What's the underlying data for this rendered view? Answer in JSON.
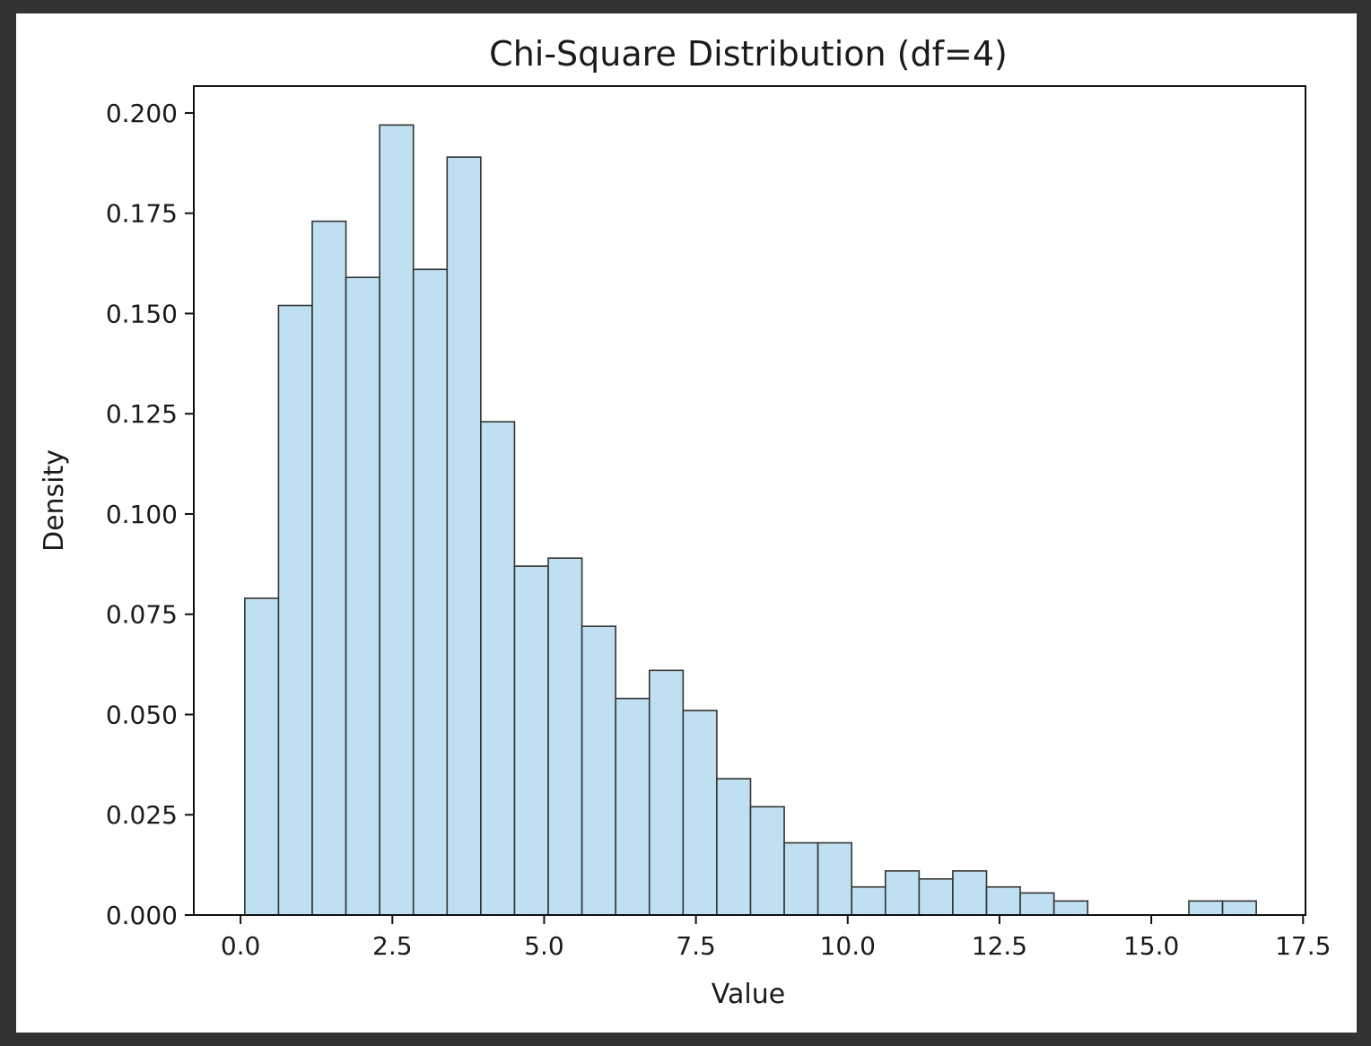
{
  "chart_data": {
    "type": "bar",
    "subtype": "histogram",
    "title": "Chi-Square Distribution (df=4)",
    "xlabel": "Value",
    "ylabel": "Density",
    "xlim": [
      -0.77,
      17.54
    ],
    "ylim": [
      0,
      0.2067
    ],
    "grid": false,
    "legend": "none",
    "colors": {
      "bar_fill": "#bfe0f0",
      "bar_edge": "#333333",
      "axes": "#111111"
    },
    "x_ticks": [
      0.0,
      2.5,
      5.0,
      7.5,
      10.0,
      12.5,
      15.0,
      17.5
    ],
    "x_tick_labels": [
      "0.0",
      "2.5",
      "5.0",
      "7.5",
      "10.0",
      "12.5",
      "15.0",
      "17.5"
    ],
    "y_ticks": [
      0.0,
      0.025,
      0.05,
      0.075,
      0.1,
      0.125,
      0.15,
      0.175,
      0.2
    ],
    "y_tick_labels": [
      "0.000",
      "0.025",
      "0.050",
      "0.075",
      "0.100",
      "0.125",
      "0.150",
      "0.175",
      "0.200"
    ],
    "bin_start": 0.07,
    "bin_width": 0.5553,
    "values": [
      0.079,
      0.152,
      0.173,
      0.159,
      0.197,
      0.161,
      0.189,
      0.123,
      0.087,
      0.089,
      0.072,
      0.054,
      0.061,
      0.051,
      0.034,
      0.027,
      0.018,
      0.018,
      0.007,
      0.011,
      0.009,
      0.011,
      0.007,
      0.0055,
      0.0035,
      0.0,
      0.0,
      0.0,
      0.0035,
      0.0035
    ]
  }
}
